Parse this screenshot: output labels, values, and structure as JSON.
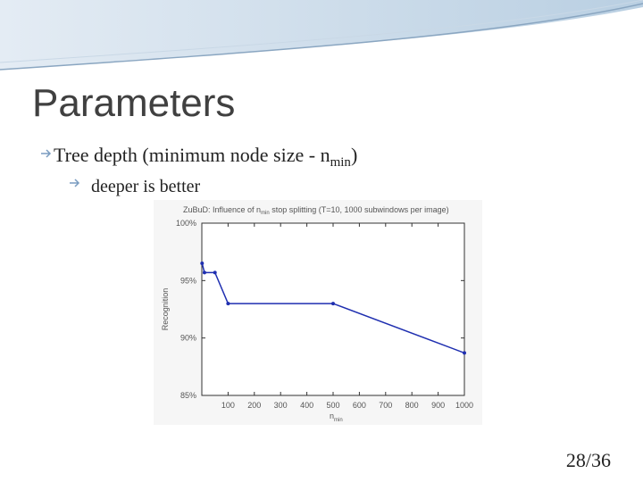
{
  "slide": {
    "title": "Parameters",
    "bullet1": {
      "main": "Tree depth (minimum node size - n",
      "sub": "min",
      "rest": ")"
    },
    "bullet2": "deeper is better",
    "page_number": "28/36"
  },
  "chart_data": {
    "type": "line",
    "title": {
      "main": "ZuBuD: Influence of n",
      "sub": "min",
      "rest": " stop splitting (T=10, 1000 subwindows per image)"
    },
    "ylabel": "Recognition",
    "xlabel": {
      "main": "n",
      "sub": "min"
    },
    "x": [
      1,
      10,
      50,
      100,
      500,
      1000
    ],
    "values": [
      96.5,
      95.7,
      95.7,
      93.0,
      93.0,
      88.7
    ],
    "color": "#1f2fb0",
    "xlim": [
      0,
      1000
    ],
    "xticks": [
      100,
      200,
      300,
      400,
      500,
      600,
      700,
      800,
      900,
      1000
    ],
    "ylim": [
      85,
      100
    ],
    "yticks": [
      {
        "value": 85,
        "label": "85%"
      },
      {
        "value": 90,
        "label": "90%"
      },
      {
        "value": 95,
        "label": "95%"
      },
      {
        "value": 100,
        "label": "100%"
      }
    ]
  }
}
